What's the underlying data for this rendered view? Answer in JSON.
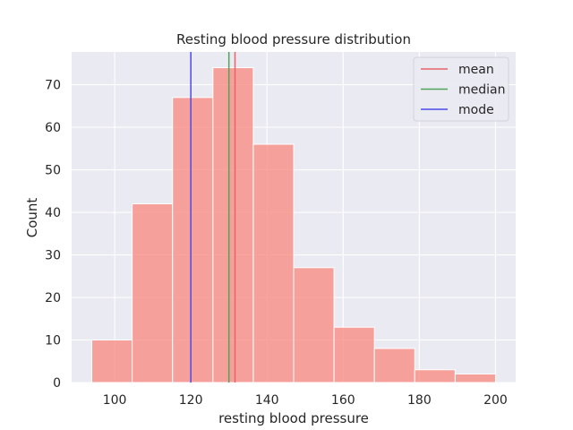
{
  "chart_data": {
    "type": "bar",
    "title": "Resting blood pressure distribution",
    "xlabel": "resting blood pressure",
    "ylabel": "Count",
    "bin_edges": [
      94,
      104.6,
      115.2,
      125.8,
      136.4,
      147,
      157.6,
      168.2,
      178.8,
      189.4,
      200
    ],
    "values": [
      10,
      42,
      67,
      74,
      56,
      27,
      13,
      8,
      3,
      2
    ],
    "xlim": [
      88.7,
      205.3
    ],
    "ylim": [
      0,
      77.7
    ],
    "xticks": [
      100,
      120,
      140,
      160,
      180,
      200
    ],
    "yticks": [
      0,
      10,
      20,
      30,
      40,
      50,
      60,
      70
    ],
    "grid": true,
    "legend_position": "top-right",
    "bar_color": "#f8877c",
    "lines": [
      {
        "name": "mean",
        "x": 131.6,
        "color": "#e8626a"
      },
      {
        "name": "median",
        "x": 130,
        "color": "#52a35a"
      },
      {
        "name": "mode",
        "x": 120,
        "color": "#4b4be8"
      }
    ]
  }
}
